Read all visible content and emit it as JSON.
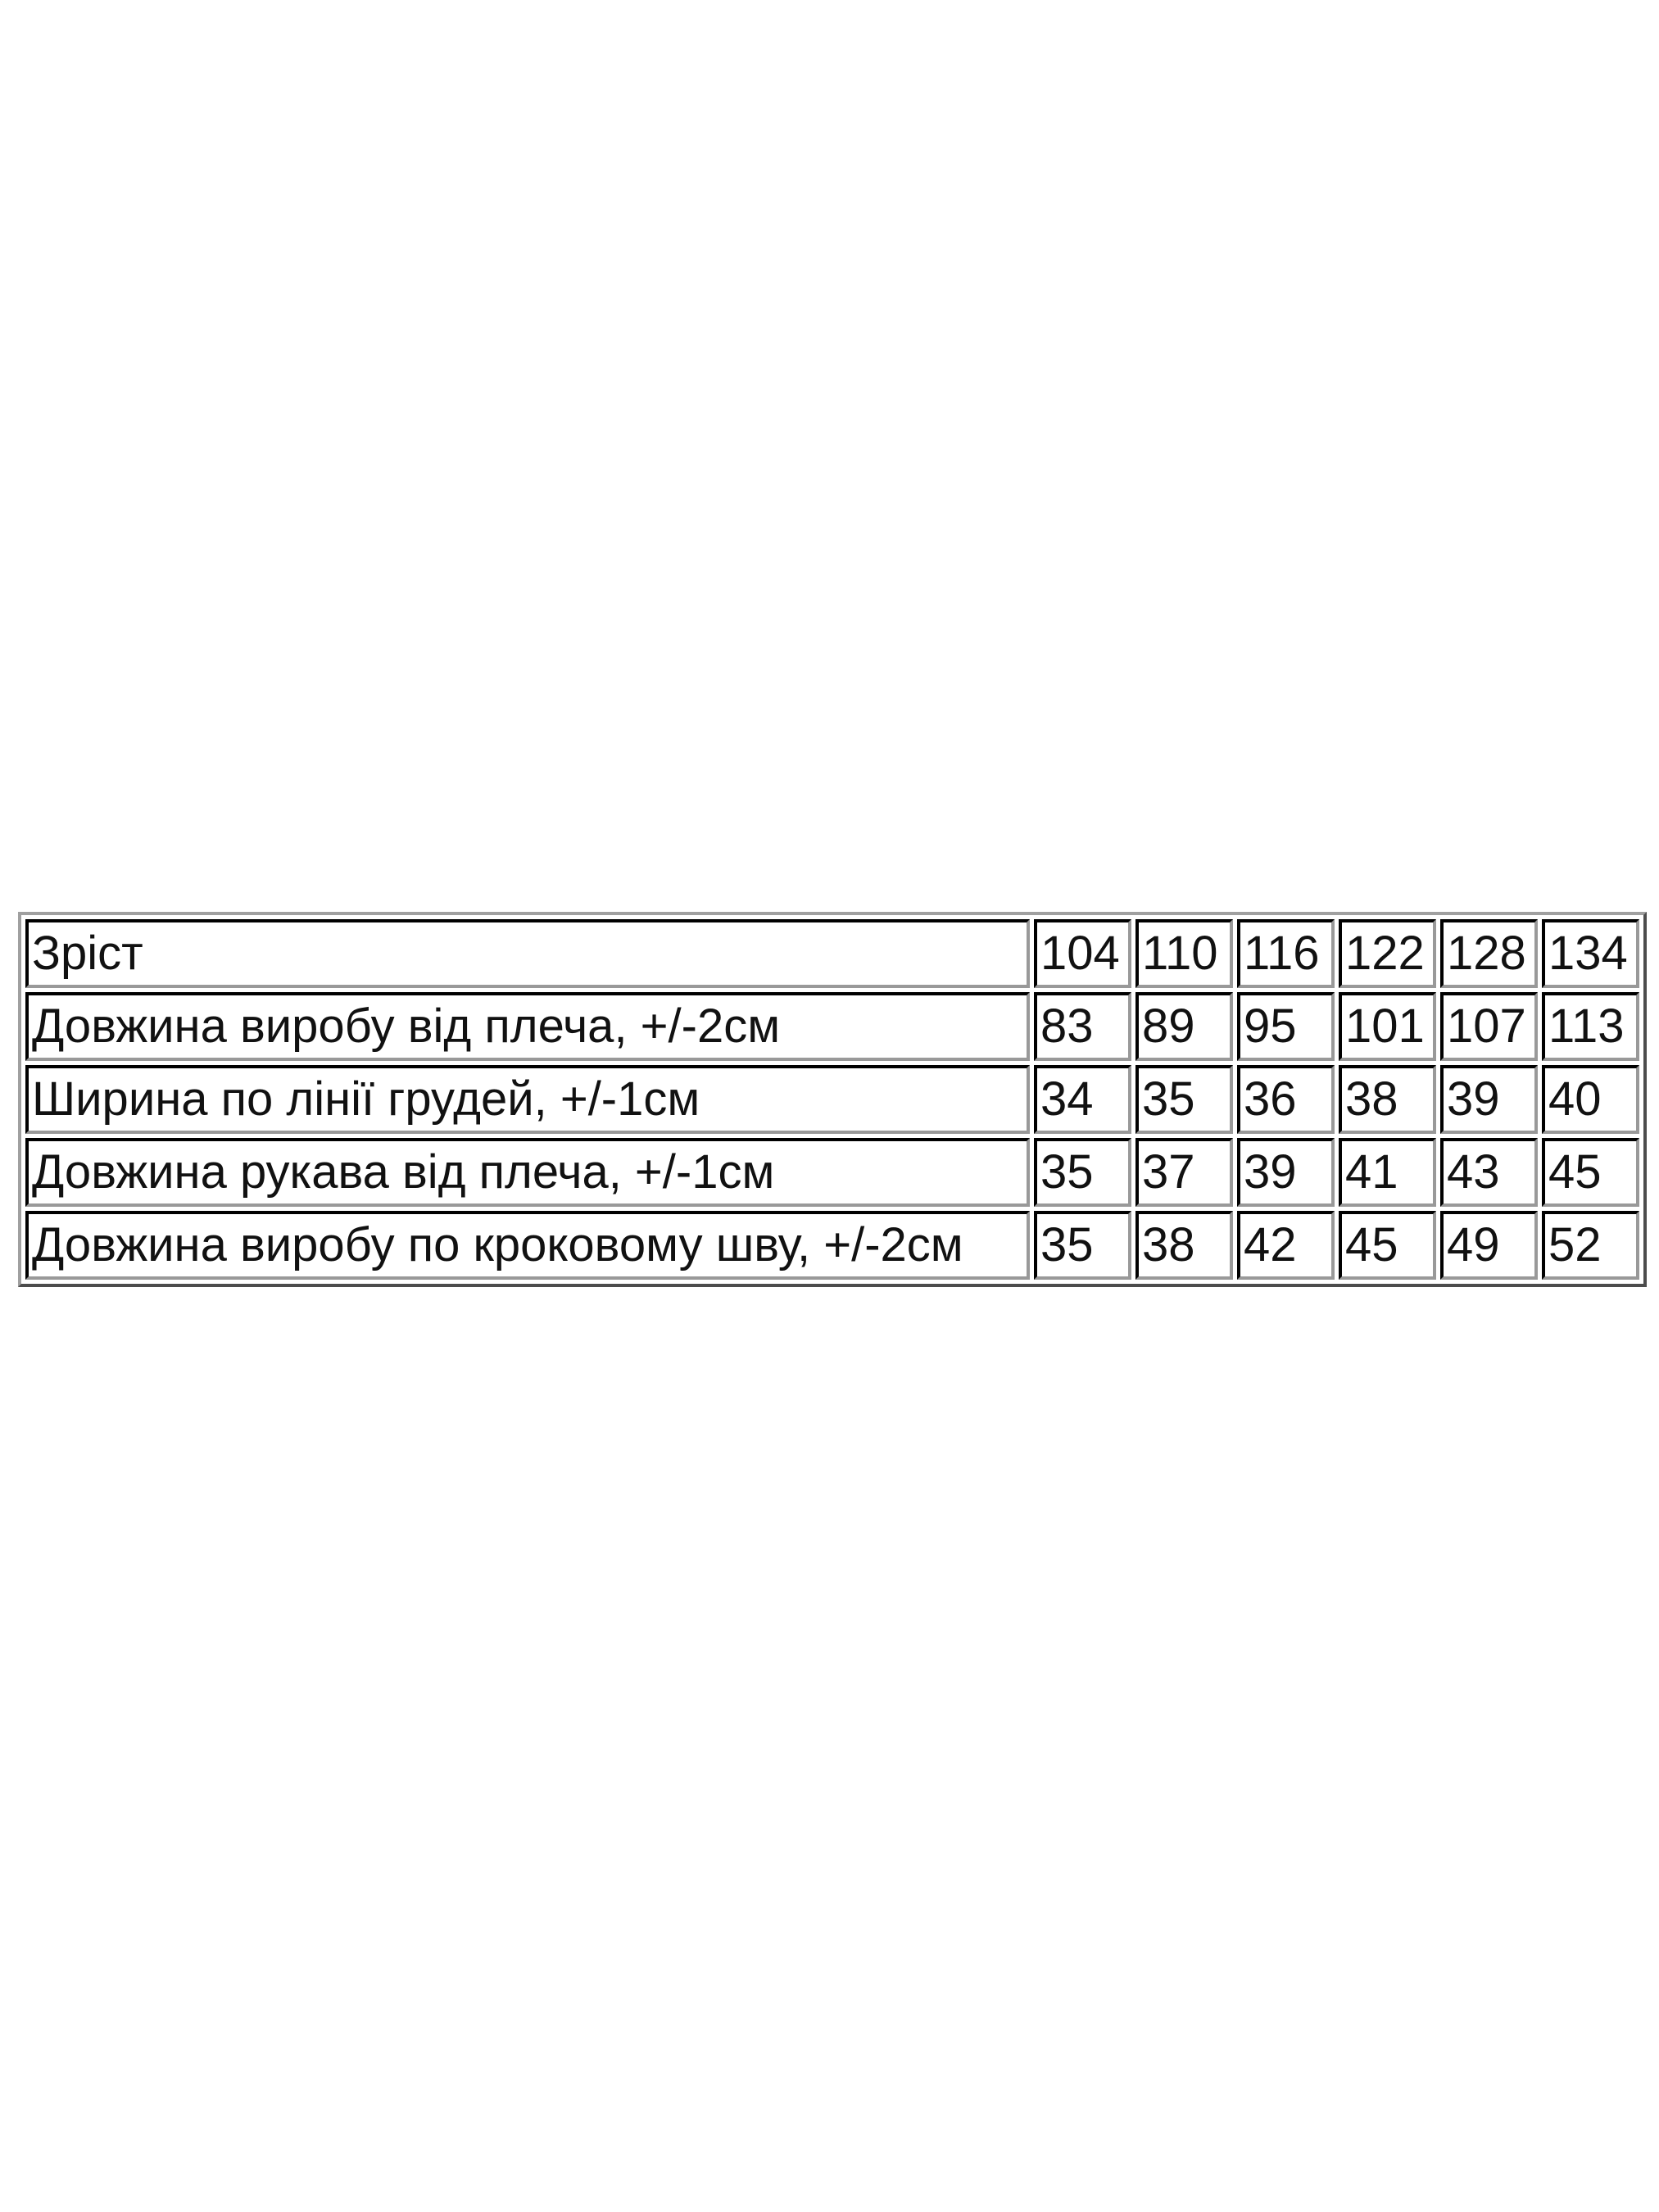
{
  "size_table": {
    "header": {
      "label": "Зріст",
      "values": [
        "104",
        "110",
        "116",
        "122",
        "128",
        "134"
      ]
    },
    "rows": [
      {
        "label": "Довжина виробу від плеча, +/-2см",
        "values": [
          "83",
          "89",
          "95",
          "101",
          "107",
          "113"
        ]
      },
      {
        "label": "Ширина по лінії грудей, +/-1см",
        "values": [
          "34",
          "35",
          "36",
          "38",
          "39",
          "40"
        ]
      },
      {
        "label": "Довжина рукава від плеча, +/-1см",
        "values": [
          "35",
          "37",
          "39",
          "41",
          "43",
          "45"
        ]
      },
      {
        "label": "Довжина виробу по кроковому шву, +/-2см",
        "values": [
          "35",
          "38",
          "42",
          "45",
          "49",
          "52"
        ]
      }
    ]
  }
}
